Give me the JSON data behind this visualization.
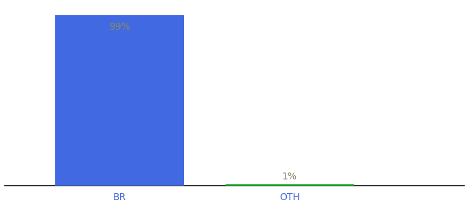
{
  "categories": [
    "BR",
    "OTH"
  ],
  "values": [
    99,
    1
  ],
  "bar_colors": [
    "#4169e1",
    "#22bb33"
  ],
  "label_texts": [
    "99%",
    "1%"
  ],
  "label_color_inside": "#888866",
  "label_color_above": "#888866",
  "ylim": [
    0,
    105
  ],
  "background_color": "#ffffff",
  "bar_width": 0.28,
  "label_fontsize": 10,
  "tick_fontsize": 10,
  "tick_color": "#4169e1",
  "spine_color": "#111111",
  "x_positions": [
    0.25,
    0.62
  ],
  "xlim": [
    0.0,
    1.0
  ]
}
